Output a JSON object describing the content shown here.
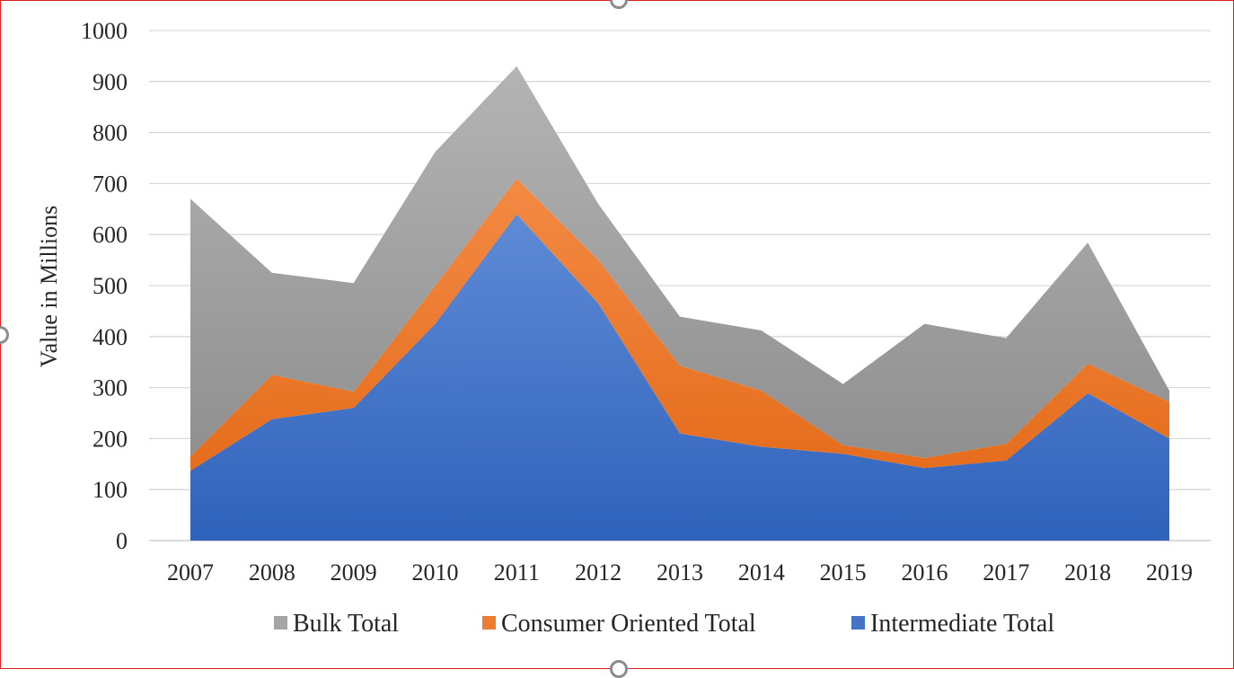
{
  "chart_data": {
    "type": "area",
    "stacked": true,
    "ylabel": "Value in Millions",
    "xlabel": "",
    "ylim": [
      0,
      1000
    ],
    "yticks": [
      0,
      100,
      200,
      300,
      400,
      500,
      600,
      700,
      800,
      900,
      1000
    ],
    "grid": true,
    "legend_position": "bottom",
    "categories": [
      "2007",
      "2008",
      "2009",
      "2010",
      "2011",
      "2012",
      "2013",
      "2014",
      "2015",
      "2016",
      "2017",
      "2018",
      "2019"
    ],
    "series": [
      {
        "name": "Intermediate Total",
        "color": "#4472c4",
        "values": [
          137,
          238,
          260,
          425,
          640,
          465,
          210,
          184,
          170,
          142,
          157,
          289,
          200
        ]
      },
      {
        "name": "Consumer Oriented Total",
        "color": "#ed7d31",
        "values": [
          28,
          87,
          32,
          75,
          70,
          85,
          133,
          110,
          17,
          20,
          33,
          58,
          72
        ]
      },
      {
        "name": "Bulk Total",
        "color": "#a5a5a5",
        "values": [
          505,
          200,
          213,
          262,
          220,
          110,
          96,
          118,
          120,
          263,
          207,
          237,
          22
        ]
      }
    ],
    "legend": [
      "Bulk Total",
      "Consumer Oriented Total",
      "Intermediate Total"
    ]
  }
}
